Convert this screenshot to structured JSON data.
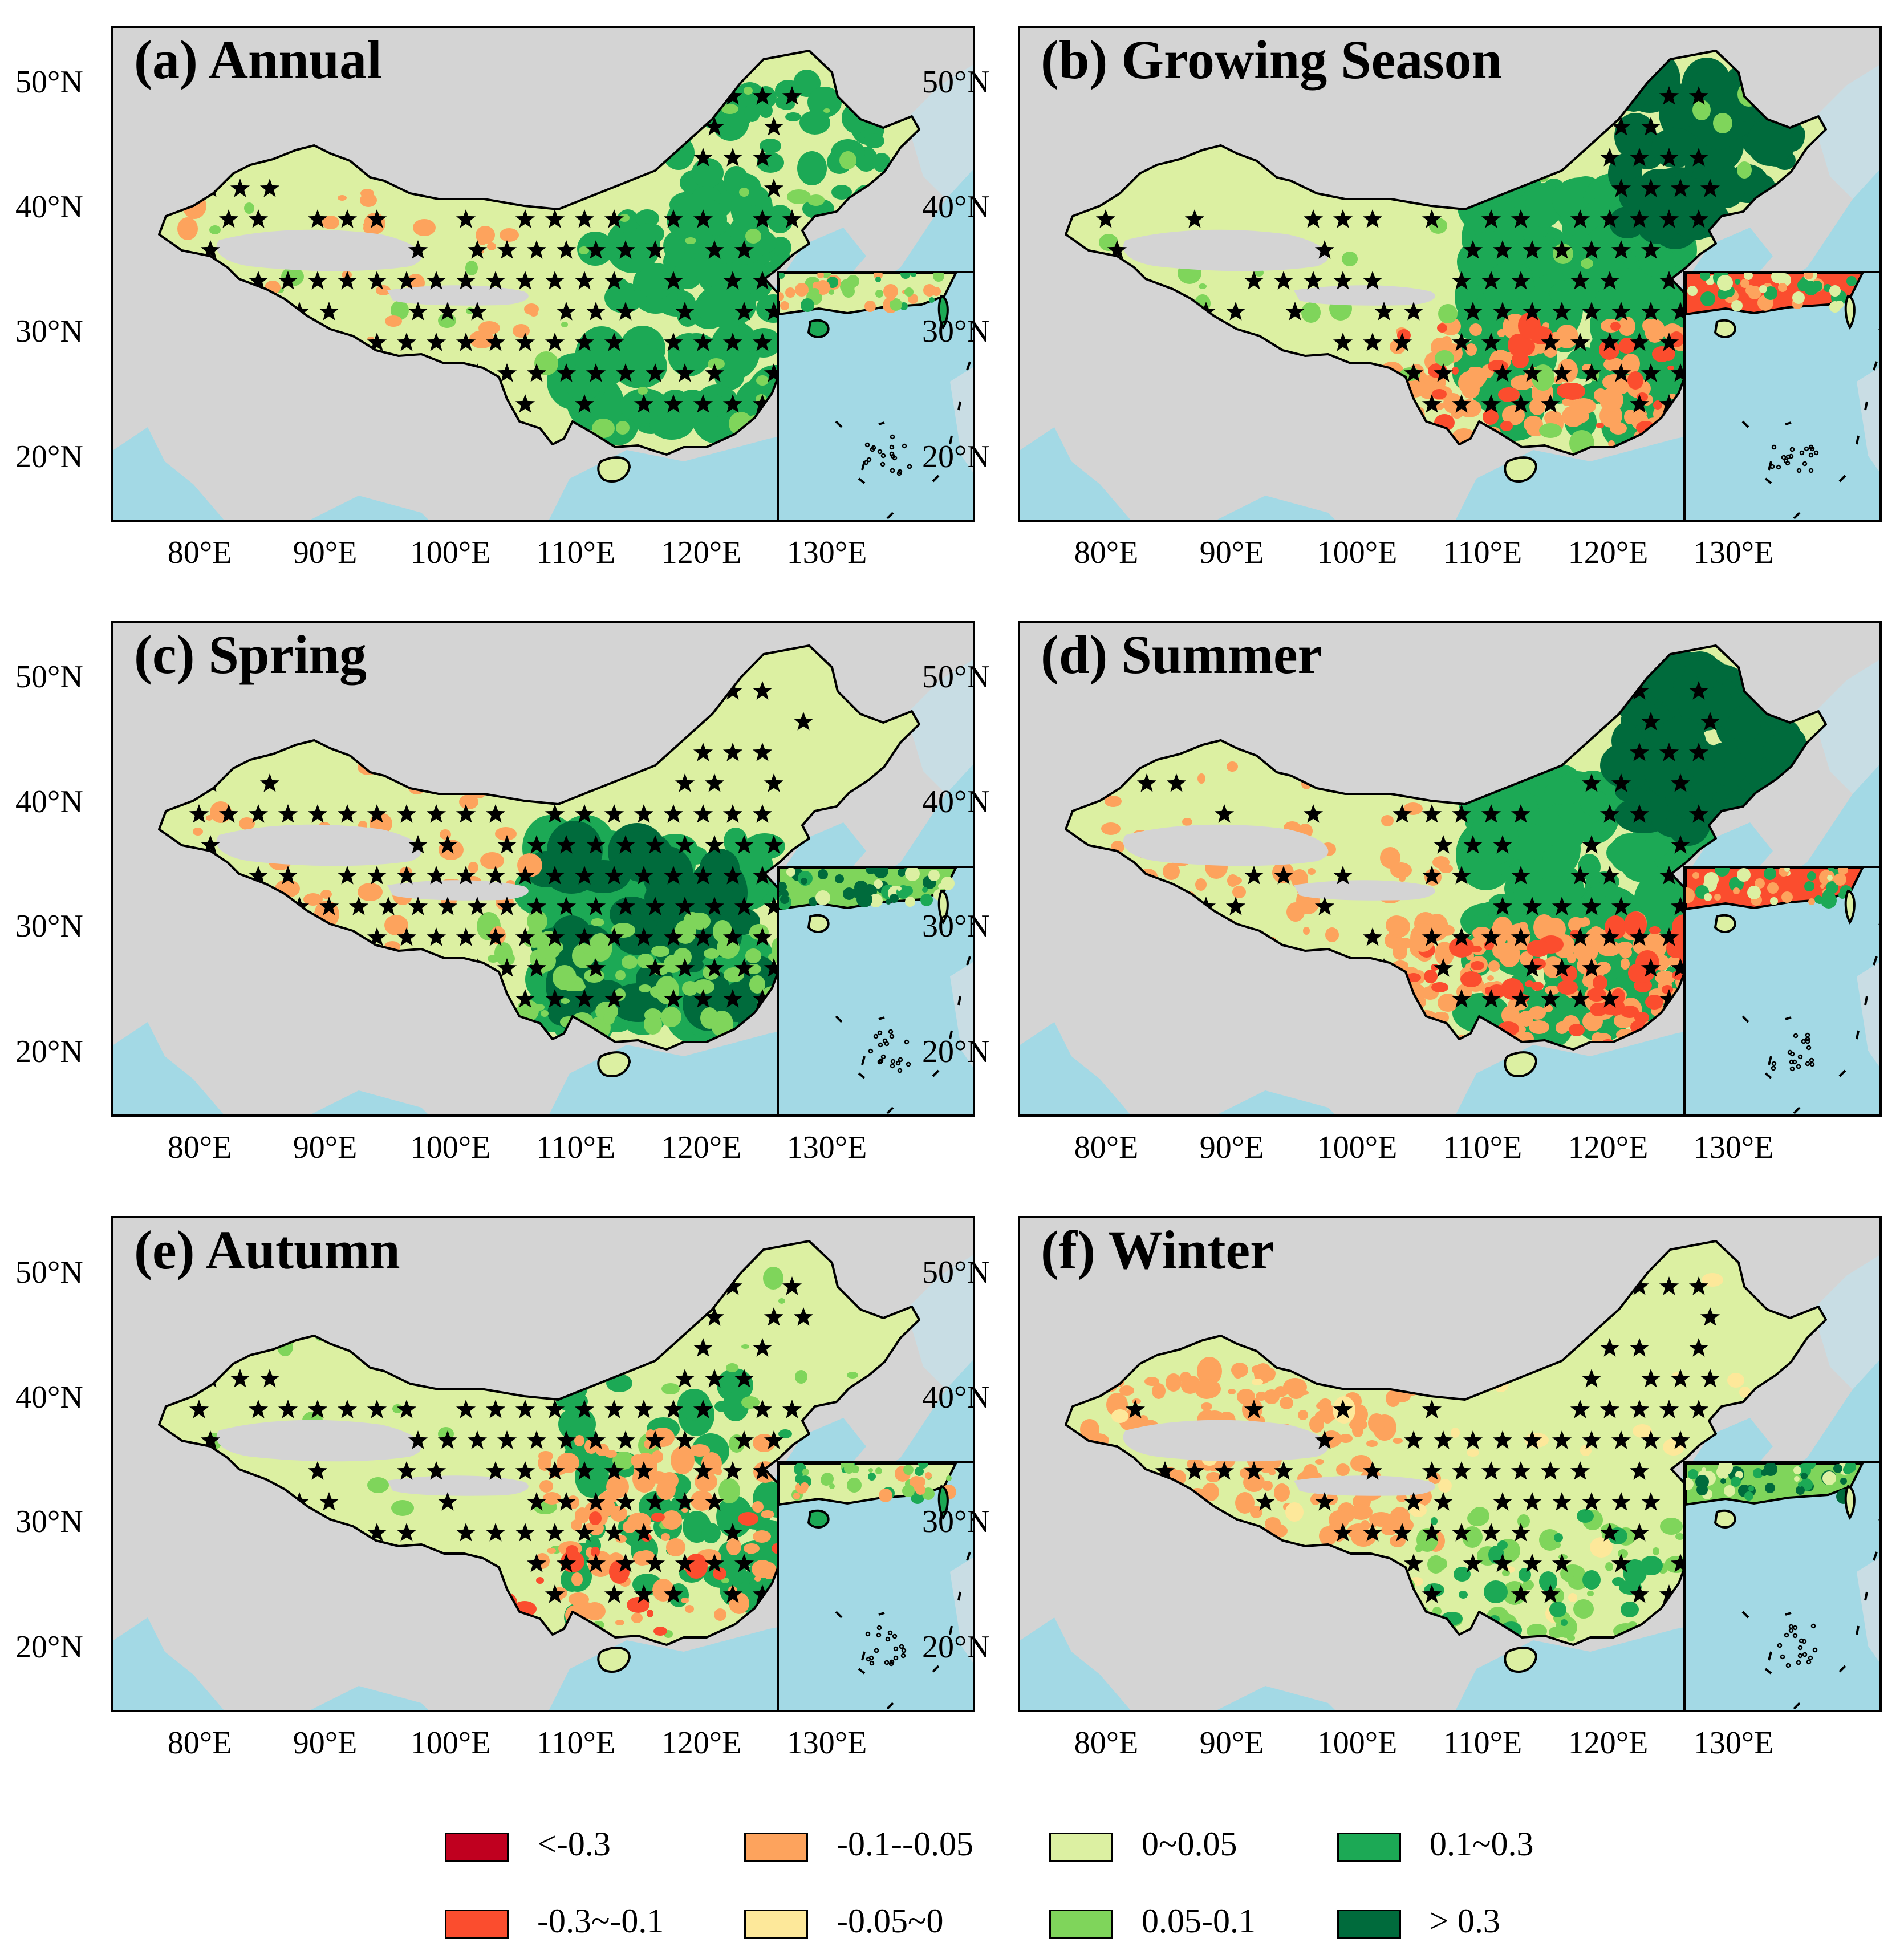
{
  "figure": {
    "panels": [
      {
        "id": "a",
        "title": "(a) Annual",
        "theme": "annual",
        "inset_theme": "annual"
      },
      {
        "id": "b",
        "title": "(b) Growing Season",
        "theme": "growing",
        "inset_theme": "warm"
      },
      {
        "id": "c",
        "title": "(c) Spring",
        "theme": "spring",
        "inset_theme": "green"
      },
      {
        "id": "d",
        "title": "(d) Summer",
        "theme": "summer",
        "inset_theme": "warm"
      },
      {
        "id": "e",
        "title": "(e) Autumn",
        "theme": "autumn",
        "inset_theme": "annual"
      },
      {
        "id": "f",
        "title": "(f) Winter",
        "theme": "winter",
        "inset_theme": "green"
      }
    ],
    "lat_labels": [
      "50°N",
      "40°N",
      "30°N",
      "20°N"
    ],
    "lon_labels": [
      "80°E",
      "90°E",
      "100°E",
      "110°E",
      "120°E",
      "130°E"
    ],
    "colors": {
      "background": "#d4d4d4",
      "sea": "#a3d9e5",
      "border": "#000000",
      "significance_marker": "#000000"
    },
    "legend": [
      {
        "label": "<-0.3",
        "color": "#c0001f"
      },
      {
        "label": "-0.3~-0.1",
        "color": "#fb4d2e"
      },
      {
        "label": "-0.1--0.05",
        "color": "#fda35d"
      },
      {
        "label": "-0.05~0",
        "color": "#fde89a"
      },
      {
        "label": "0~0.05",
        "color": "#dcf0a2"
      },
      {
        "label": "0.05-0.1",
        "color": "#7fd55b"
      },
      {
        "label": "0.1~0.3",
        "color": "#1ca955"
      },
      {
        "label": "> 0.3",
        "color": "#006b3c"
      }
    ]
  }
}
